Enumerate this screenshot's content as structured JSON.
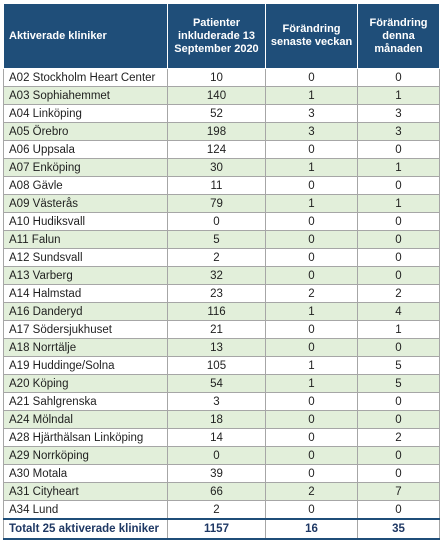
{
  "table": {
    "headers": {
      "clinic": "Aktiverade kliniker",
      "patients": "Patienter inkluderade 13 September 2020",
      "change_week": "Förändring senaste veckan",
      "change_month": "Förändring denna månaden"
    },
    "rows": [
      {
        "clinic": "A02 Stockholm Heart Center",
        "patients": "10",
        "change_week": "0",
        "change_month": "0"
      },
      {
        "clinic": "A03 Sophiahemmet",
        "patients": "140",
        "change_week": "1",
        "change_month": "1"
      },
      {
        "clinic": "A04 Linköping",
        "patients": "52",
        "change_week": "3",
        "change_month": "3"
      },
      {
        "clinic": "A05 Örebro",
        "patients": "198",
        "change_week": "3",
        "change_month": "3"
      },
      {
        "clinic": "A06 Uppsala",
        "patients": "124",
        "change_week": "0",
        "change_month": "0"
      },
      {
        "clinic": "A07 Enköping",
        "patients": "30",
        "change_week": "1",
        "change_month": "1"
      },
      {
        "clinic": "A08 Gävle",
        "patients": "11",
        "change_week": "0",
        "change_month": "0"
      },
      {
        "clinic": "A09 Västerås",
        "patients": "79",
        "change_week": "1",
        "change_month": "1"
      },
      {
        "clinic": "A10 Hudiksvall",
        "patients": "0",
        "change_week": "0",
        "change_month": "0"
      },
      {
        "clinic": "A11 Falun",
        "patients": "5",
        "change_week": "0",
        "change_month": "0"
      },
      {
        "clinic": "A12 Sundsvall",
        "patients": "2",
        "change_week": "0",
        "change_month": "0"
      },
      {
        "clinic": "A13 Varberg",
        "patients": "32",
        "change_week": "0",
        "change_month": "0"
      },
      {
        "clinic": "A14 Halmstad",
        "patients": "23",
        "change_week": "2",
        "change_month": "2"
      },
      {
        "clinic": "A16 Danderyd",
        "patients": "116",
        "change_week": "1",
        "change_month": "4"
      },
      {
        "clinic": "A17 Södersjukhuset",
        "patients": "21",
        "change_week": "0",
        "change_month": "1"
      },
      {
        "clinic": "A18 Norrtälje",
        "patients": "13",
        "change_week": "0",
        "change_month": "0"
      },
      {
        "clinic": "A19 Huddinge/Solna",
        "patients": "105",
        "change_week": "1",
        "change_month": "5"
      },
      {
        "clinic": "A20 Köping",
        "patients": "54",
        "change_week": "1",
        "change_month": "5"
      },
      {
        "clinic": "A21 Sahlgrenska",
        "patients": "3",
        "change_week": "0",
        "change_month": "0"
      },
      {
        "clinic": "A24 Mölndal",
        "patients": "18",
        "change_week": "0",
        "change_month": "0"
      },
      {
        "clinic": "A28 Hjärthälsan Linköping",
        "patients": "14",
        "change_week": "0",
        "change_month": "2"
      },
      {
        "clinic": "A29 Norrköping",
        "patients": "0",
        "change_week": "0",
        "change_month": "0"
      },
      {
        "clinic": "A30 Motala",
        "patients": "39",
        "change_week": "0",
        "change_month": "0"
      },
      {
        "clinic": "A31 Cityheart",
        "patients": "66",
        "change_week": "2",
        "change_month": "7"
      },
      {
        "clinic": "A34 Lund",
        "patients": "2",
        "change_week": "0",
        "change_month": "0"
      }
    ],
    "total": {
      "clinic": "Totalt 25 aktiverade kliniker",
      "patients": "1157",
      "change_week": "16",
      "change_month": "35"
    }
  },
  "colors": {
    "header_bg": "#1f4e79",
    "green_row": "#e2efda",
    "total_text": "#1f3864"
  }
}
